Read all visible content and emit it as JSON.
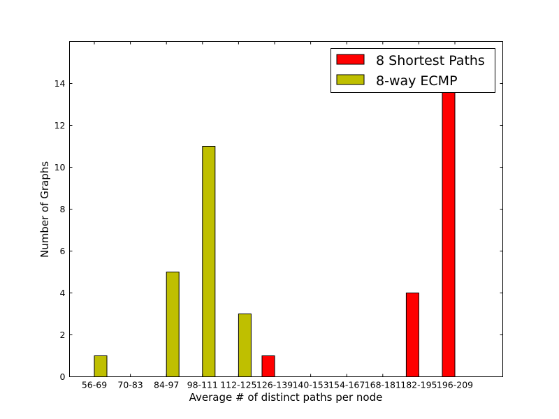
{
  "chart_data": {
    "type": "bar",
    "title": "",
    "xlabel": "Average # of distinct paths per node",
    "ylabel": "Number of Graphs",
    "ylim": [
      0,
      16
    ],
    "yticks": [
      0,
      2,
      4,
      6,
      8,
      10,
      12,
      14
    ],
    "grid": false,
    "legend_position": "top-right",
    "categories": [
      "56-69",
      "70-83",
      "84-97",
      "98-111",
      "112-125",
      "126-139",
      "140-153",
      "154-167",
      "168-181",
      "182-195",
      "196-209"
    ],
    "series": [
      {
        "name": "8 Shortest Paths",
        "color": "#ff0000",
        "values": [
          0,
          0,
          0,
          0,
          0,
          1,
          0,
          0,
          0,
          4,
          14
        ]
      },
      {
        "name": "8-way ECMP",
        "color": "#bfbf00",
        "values": [
          1,
          0,
          5,
          11,
          3,
          0,
          0,
          0,
          0,
          0,
          0
        ]
      }
    ]
  }
}
